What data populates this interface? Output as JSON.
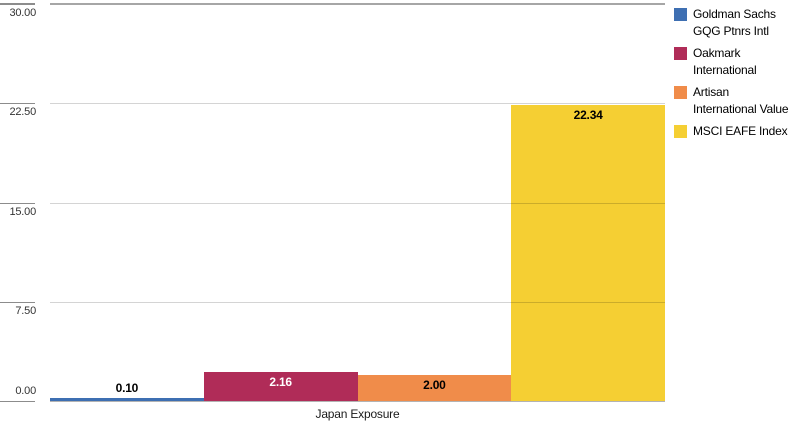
{
  "chart_data": {
    "type": "bar",
    "title": "",
    "xlabel": "Japan Exposure",
    "ylabel": "",
    "ylim": [
      0,
      30
    ],
    "yticks": [
      0,
      7.5,
      15,
      22.5,
      30
    ],
    "grid": true,
    "legend_position": "right",
    "categories": [
      "Japan Exposure"
    ],
    "series": [
      {
        "name": "Goldman Sachs GQG Ptnrs Intl",
        "legend_lines": [
          "Goldman Sachs",
          "GQG Ptnrs Intl"
        ],
        "value": 0.1,
        "value_label": "0.10",
        "color": "#3E6FB2",
        "value_label_color": "#000000"
      },
      {
        "name": "Oakmark International",
        "legend_lines": [
          "Oakmark",
          "International"
        ],
        "value": 2.16,
        "value_label": "2.16",
        "color": "#B02C58",
        "value_label_color": "#FFFFFF"
      },
      {
        "name": "Artisan International Value",
        "legend_lines": [
          "Artisan",
          "International Value"
        ],
        "value": 2.0,
        "value_label": "2.00",
        "color": "#F08C4A",
        "value_label_color": "#000000"
      },
      {
        "name": "MSCI EAFE Index",
        "legend_lines": [
          "MSCI EAFE Index"
        ],
        "value": 22.34,
        "value_label": "22.34",
        "color": "#F5CF33",
        "value_label_color": "#000000"
      }
    ]
  },
  "colors": {
    "background": "#FFFFFF",
    "grid_top": "#A6A6A6",
    "grid_mid": "#D4D4D4",
    "grid_base": "#B3B3B3",
    "tick_stub": "#8C8C8C",
    "tick_text": "#333333",
    "axis_label_text": "#1A1A1A",
    "legend_text": "#000000"
  }
}
